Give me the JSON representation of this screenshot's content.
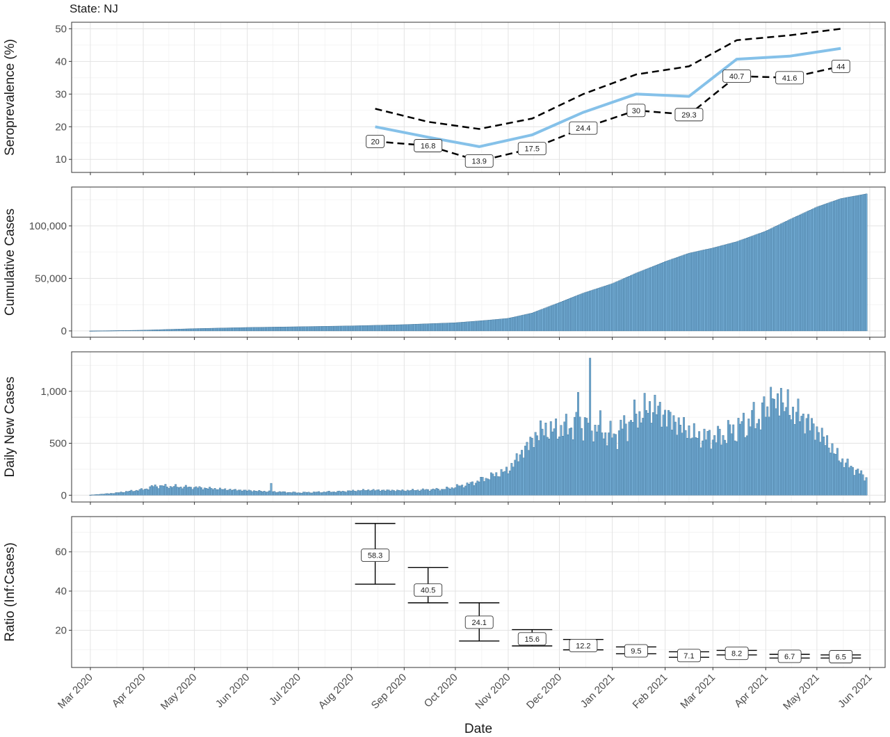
{
  "chart_data": {
    "title": "State: NJ",
    "xlabel": "Date",
    "x_ticks": [
      "Mar 2020",
      "Apr 2020",
      "May 2020",
      "Jun 2020",
      "Jul 2020",
      "Aug 2020",
      "Sep 2020",
      "Oct 2020",
      "Nov 2020",
      "Dec 2020",
      "Jan 2021",
      "Feb 2021",
      "Mar 2021",
      "Apr 2021",
      "May 2021",
      "Jun 2021"
    ],
    "panels": [
      {
        "type": "line",
        "ylabel": "Seroprevalence (%)",
        "ylim": [
          6,
          52
        ],
        "yticks": [
          "10",
          "20",
          "30",
          "40",
          "50"
        ],
        "grid": true,
        "x": [
          "2020-08-15",
          "2020-09-15",
          "2020-10-15",
          "2020-11-15",
          "2020-12-15",
          "2021-01-15",
          "2021-02-15",
          "2021-03-15",
          "2021-04-15",
          "2021-05-15"
        ],
        "series": [
          {
            "role": "estimate",
            "color": "#85c1e9",
            "values": [
              20,
              16.8,
              13.9,
              17.5,
              24.4,
              30,
              29.3,
              40.7,
              41.6,
              44
            ]
          },
          {
            "role": "upper",
            "color": "#000000",
            "values": [
              25.5,
              21.5,
              19.3,
              22.5,
              30,
              36,
              38.5,
              46.5,
              48,
              50
            ]
          },
          {
            "role": "lower",
            "color": "#000000",
            "values": [
              15.5,
              14.2,
              9.5,
              13.3,
              19.6,
              25,
              23.7,
              35.5,
              35,
              38.5
            ]
          }
        ],
        "data_labels": [
          "20",
          "16.8",
          "13.9",
          "17.5",
          "24.4",
          "30",
          "29.3",
          "40.7",
          "41.6",
          "44"
        ]
      },
      {
        "type": "bar",
        "ylabel": "Cumulative Cases",
        "ylim": [
          -6000,
          137000
        ],
        "yticks": [
          "0",
          "50,000",
          "100,000"
        ],
        "color": "#6fa8d0",
        "start": "2020-03-01",
        "end": "2021-05-30",
        "anchors": [
          [
            "2020-03-01",
            0
          ],
          [
            "2020-04-01",
            700
          ],
          [
            "2020-05-01",
            2200
          ],
          [
            "2020-06-01",
            3300
          ],
          [
            "2020-07-01",
            4000
          ],
          [
            "2020-08-01",
            4800
          ],
          [
            "2020-09-01",
            6000
          ],
          [
            "2020-10-01",
            7800
          ],
          [
            "2020-10-20",
            10200
          ],
          [
            "2020-11-01",
            12000
          ],
          [
            "2020-11-15",
            17000
          ],
          [
            "2020-12-01",
            27000
          ],
          [
            "2020-12-15",
            36000
          ],
          [
            "2021-01-01",
            45000
          ],
          [
            "2021-01-15",
            55000
          ],
          [
            "2021-02-01",
            66000
          ],
          [
            "2021-02-15",
            74000
          ],
          [
            "2021-03-01",
            79000
          ],
          [
            "2021-03-15",
            85000
          ],
          [
            "2021-04-01",
            95000
          ],
          [
            "2021-04-15",
            106000
          ],
          [
            "2021-05-01",
            118000
          ],
          [
            "2021-05-15",
            126000
          ],
          [
            "2021-05-30",
            130500
          ]
        ]
      },
      {
        "type": "bar",
        "ylabel": "Daily New Cases",
        "ylim": [
          -65,
          1380
        ],
        "yticks": [
          "0",
          "500",
          "1,000"
        ],
        "color": "#6fa8d0",
        "start": "2020-03-01",
        "end": "2021-05-30",
        "anchors": [
          [
            "2020-03-01",
            2
          ],
          [
            "2020-03-15",
            20
          ],
          [
            "2020-04-01",
            55
          ],
          [
            "2020-04-08",
            90
          ],
          [
            "2020-05-01",
            75
          ],
          [
            "2020-05-20",
            55
          ],
          [
            "2020-06-10",
            38
          ],
          [
            "2020-07-01",
            25
          ],
          [
            "2020-07-25",
            35
          ],
          [
            "2020-08-10",
            50
          ],
          [
            "2020-09-01",
            45
          ],
          [
            "2020-09-25",
            60
          ],
          [
            "2020-10-10",
            110
          ],
          [
            "2020-10-25",
            200
          ],
          [
            "2020-11-01",
            240
          ],
          [
            "2020-11-10",
            430
          ],
          [
            "2020-11-20",
            620
          ],
          [
            "2020-12-01",
            630
          ],
          [
            "2020-12-15",
            700
          ],
          [
            "2020-12-25",
            640
          ],
          [
            "2021-01-01",
            560
          ],
          [
            "2021-01-15",
            760
          ],
          [
            "2021-01-25",
            850
          ],
          [
            "2021-02-05",
            720
          ],
          [
            "2021-02-20",
            560
          ],
          [
            "2021-03-05",
            560
          ],
          [
            "2021-03-20",
            680
          ],
          [
            "2021-04-05",
            840
          ],
          [
            "2021-04-15",
            830
          ],
          [
            "2021-04-25",
            720
          ],
          [
            "2021-05-05",
            550
          ],
          [
            "2021-05-15",
            340
          ],
          [
            "2021-05-30",
            170
          ]
        ],
        "spikes": [
          [
            "2020-06-15",
            115
          ],
          [
            "2020-12-19",
            1320
          ],
          [
            "2020-12-12",
            990
          ],
          [
            "2021-04-04",
            1040
          ],
          [
            "2021-04-10",
            1030
          ]
        ]
      },
      {
        "type": "errorbar",
        "ylabel": "Ratio (Inf:Cases)",
        "ylim": [
          1,
          78
        ],
        "yticks": [
          "20",
          "40",
          "60"
        ],
        "x": [
          "2020-08-15",
          "2020-09-15",
          "2020-10-15",
          "2020-11-15",
          "2020-12-15",
          "2021-01-15",
          "2021-02-15",
          "2021-03-15",
          "2021-04-15",
          "2021-05-15"
        ],
        "values": [
          58.3,
          40.5,
          24.1,
          15.6,
          12.2,
          9.5,
          7.1,
          8.2,
          6.7,
          6.5
        ],
        "lower": [
          43.5,
          34,
          14.5,
          12,
          10,
          8,
          6.2,
          7.4,
          5.8,
          5.8
        ],
        "upper": [
          74.5,
          52,
          34,
          20.3,
          15.3,
          11.5,
          9,
          9.7,
          7.7,
          7.4
        ],
        "data_labels": [
          "58.3",
          "40.5",
          "24.1",
          "15.6",
          "12.2",
          "9.5",
          "7.1",
          "8.2",
          "6.7",
          "6.5"
        ]
      }
    ]
  }
}
